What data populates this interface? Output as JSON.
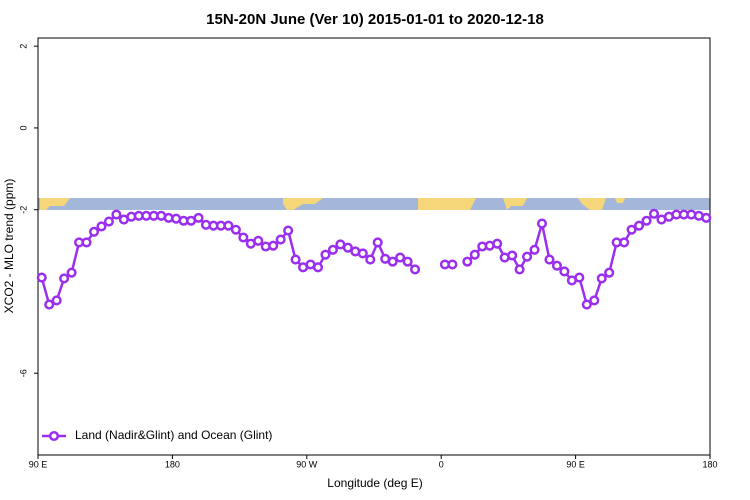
{
  "chart_data": {
    "type": "line",
    "title": "15N-20N June (Ver 10)   2015-01-01 to 2020-12-18",
    "x_label": "Longitude (deg E)",
    "y_label": "XCO2 - MLO trend (ppm)",
    "x": [
      92.5,
      97.5,
      102.5,
      107.5,
      112.5,
      117.5,
      122.5,
      127.5,
      132.5,
      137.5,
      142.5,
      147.5,
      152.5,
      157.5,
      162.5,
      167.5,
      172.5,
      177.5,
      182.5,
      187.5,
      192.5,
      197.5,
      202.5,
      207.5,
      212.5,
      217.5,
      222.5,
      227.5,
      232.5,
      237.5,
      242.5,
      247.5,
      252.5,
      257.5,
      262.5,
      267.5,
      272.5,
      277.5,
      282.5,
      287.5,
      292.5,
      297.5,
      302.5,
      307.5,
      312.5,
      317.5,
      322.5,
      327.5,
      332.5,
      337.5,
      342.5,
      347.5,
      352.5,
      357.5,
      362.5,
      367.5,
      372.5,
      377.5,
      382.5,
      387.5,
      392.5,
      397.5,
      402.5,
      407.5,
      412.5,
      417.5,
      422.5,
      427.5,
      432.5,
      437.5,
      442.5,
      447.5,
      452.5,
      457.5,
      462.5,
      467.5,
      472.5,
      477.5,
      482.5,
      487.5,
      492.5,
      497.5,
      502.5,
      507.5,
      512.5,
      517.5,
      522.5,
      527.5,
      532.5,
      537.5
    ],
    "series": [
      {
        "name": "Land (Nadir&Glint) and Ocean (Glint)",
        "color": "#9b2ff0",
        "values": [
          -3.66,
          -4.32,
          -4.22,
          -3.68,
          -3.54,
          -2.8,
          -2.8,
          -2.54,
          -2.41,
          -2.29,
          -2.12,
          -2.24,
          -2.17,
          -2.15,
          -2.15,
          -2.15,
          -2.15,
          -2.2,
          -2.22,
          -2.27,
          -2.27,
          -2.2,
          -2.37,
          -2.39,
          -2.39,
          -2.39,
          -2.49,
          -2.68,
          -2.83,
          -2.76,
          -2.9,
          -2.88,
          -2.73,
          -2.51,
          -3.22,
          -3.41,
          -3.34,
          -3.41,
          -3.1,
          -2.98,
          -2.85,
          -2.93,
          -3.02,
          -3.07,
          -3.22,
          -2.8,
          -3.2,
          -3.27,
          -3.17,
          -3.27,
          -3.46,
          null,
          null,
          null,
          -3.34,
          -3.34,
          null,
          -3.27,
          -3.1,
          -2.9,
          -2.88,
          -2.83,
          -3.17,
          -3.12,
          -3.46,
          -3.15,
          -2.98,
          -2.34,
          -3.22,
          -3.37,
          -3.51,
          -3.73,
          -3.66,
          -4.32,
          -4.22,
          -3.68,
          -3.54,
          -2.8,
          -2.8,
          -2.49,
          -2.39,
          -2.27,
          -2.1,
          -2.24,
          -2.17,
          -2.12,
          -2.12,
          -2.12,
          -2.15,
          -2.2
        ]
      }
    ],
    "xlim": [
      90,
      540
    ],
    "xticks": [
      {
        "value": 90,
        "label": "90 E"
      },
      180,
      {
        "value": 270,
        "label": "90 W"
      },
      {
        "value": 360,
        "label": "0"
      },
      {
        "value": 450,
        "label": "90 E"
      },
      {
        "value": 540,
        "label": "180"
      }
    ],
    "ylim": [
      -8,
      2.2
    ],
    "yticks": [
      2,
      0,
      -2,
      -6
    ],
    "legend": "bottom-left"
  }
}
